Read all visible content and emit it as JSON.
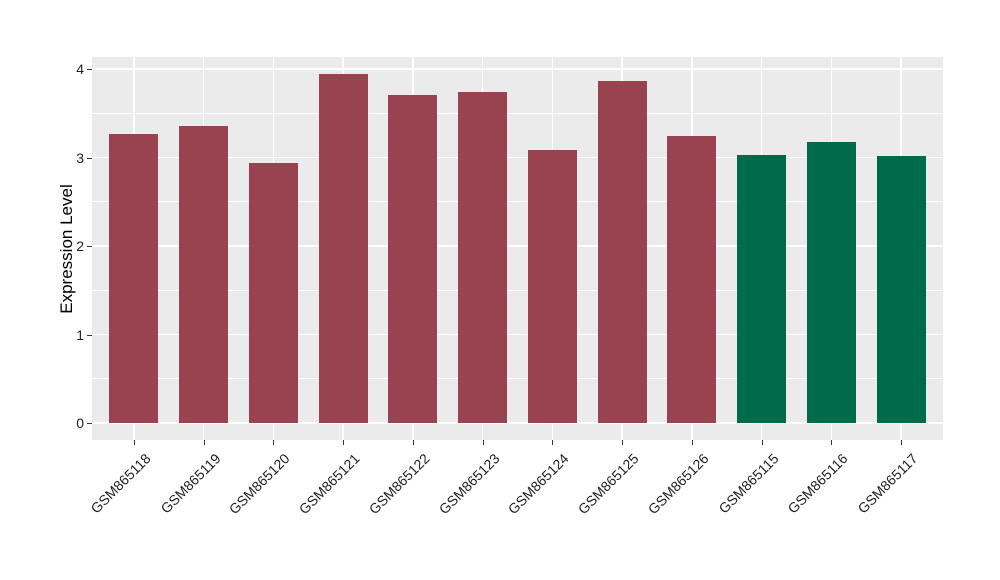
{
  "chart_data": {
    "type": "bar",
    "title": "",
    "xlabel": "",
    "ylabel": "Expression Level",
    "categories": [
      "GSM865118",
      "GSM865119",
      "GSM865120",
      "GSM865121",
      "GSM865122",
      "GSM865123",
      "GSM865124",
      "GSM865125",
      "GSM865126",
      "GSM865115",
      "GSM865116",
      "GSM865117"
    ],
    "values": [
      3.27,
      3.36,
      2.94,
      3.94,
      3.71,
      3.74,
      3.09,
      3.87,
      3.24,
      3.03,
      3.18,
      3.02
    ],
    "bar_colors": [
      "#9A4350",
      "#9A4350",
      "#9A4350",
      "#9A4350",
      "#9A4350",
      "#9A4350",
      "#9A4350",
      "#9A4350",
      "#9A4350",
      "#006B4A",
      "#006B4A",
      "#006B4A"
    ],
    "group_colors": {
      "red_bars": "#9A4350",
      "green_bars": "#006B4A"
    },
    "yticks": [
      0,
      1,
      2,
      3,
      4
    ],
    "ytick_labels": [
      "0",
      "1",
      "2",
      "3",
      "4"
    ],
    "minor_yticks": [
      0.5,
      1.5,
      2.5,
      3.5
    ],
    "ylim": [
      -0.19,
      4.14
    ],
    "grid": true,
    "legend_position": "none",
    "panel_background": "#EBEBEB",
    "grid_color": "#FFFFFF",
    "axis_text_color": "#1F1F1F"
  }
}
